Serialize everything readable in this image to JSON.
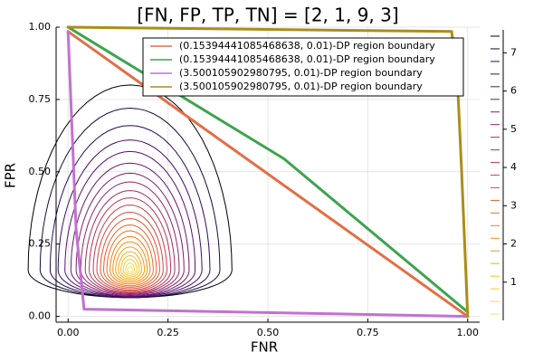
{
  "chart_data": {
    "type": "line",
    "title": "[FN, FP, TP, TN] = [2, 1, 9, 3]",
    "xlabel": "FNR",
    "ylabel": "FPR",
    "xlim": [
      -0.03,
      1.03
    ],
    "ylim": [
      -0.02,
      1.0
    ],
    "x_ticks": [
      0.0,
      0.25,
      0.5,
      0.75,
      1.0
    ],
    "x_tick_labels": [
      "0.00",
      "0.25",
      "0.50",
      "0.75",
      "1.00"
    ],
    "y_ticks": [
      0.0,
      0.25,
      0.5,
      0.75,
      1.0
    ],
    "y_tick_labels": [
      "0.00",
      "0.25",
      "0.50",
      "0.75",
      "1.00"
    ],
    "grid": true,
    "legend_position": "top-right",
    "series": [
      {
        "name": "(0.15394441085468638, 0.01)-DP region boundary",
        "color": "#e26f46",
        "x": [
          0.0,
          1.0
        ],
        "y": [
          0.985,
          0.0
        ]
      },
      {
        "name": "(0.15394441085468638, 0.01)-DP region boundary",
        "color": "#3da44d",
        "x": [
          0.0,
          0.54,
          1.0
        ],
        "y": [
          1.0,
          0.545,
          0.015
        ]
      },
      {
        "name": "(3.500105902980795, 0.01)-DP region boundary",
        "color": "#c271d2",
        "x": [
          0.0,
          0.02,
          0.04,
          1.0
        ],
        "y": [
          0.985,
          0.3,
          0.025,
          0.0
        ]
      },
      {
        "name": "(3.500105902980795, 0.01)-DP region boundary",
        "color": "#ac8d18",
        "x": [
          0.0,
          0.96,
          0.975,
          0.985,
          1.0
        ],
        "y": [
          1.0,
          0.985,
          0.8,
          0.5,
          0.0
        ]
      }
    ],
    "contours": {
      "center": [
        0.155,
        0.16
      ],
      "colorbar_ticks": [
        1,
        2,
        3,
        4,
        5,
        6,
        7
      ],
      "colorbar_range": [
        0,
        7.6
      ],
      "levels": [
        {
          "rx": 0.255,
          "ry_up": 0.64,
          "ry_down": 0.095,
          "color": "#000000"
        },
        {
          "rx": 0.225,
          "ry_up": 0.56,
          "ry_down": 0.095,
          "color": "#160b39"
        },
        {
          "rx": 0.2,
          "ry_up": 0.5,
          "ry_down": 0.095,
          "color": "#2b0b57"
        },
        {
          "rx": 0.18,
          "ry_up": 0.45,
          "ry_down": 0.093,
          "color": "#420a68"
        },
        {
          "rx": 0.163,
          "ry_up": 0.41,
          "ry_down": 0.091,
          "color": "#57106e"
        },
        {
          "rx": 0.148,
          "ry_up": 0.37,
          "ry_down": 0.089,
          "color": "#6a176e"
        },
        {
          "rx": 0.135,
          "ry_up": 0.335,
          "ry_down": 0.086,
          "color": "#7f1e6c"
        },
        {
          "rx": 0.123,
          "ry_up": 0.305,
          "ry_down": 0.083,
          "color": "#932667"
        },
        {
          "rx": 0.112,
          "ry_up": 0.275,
          "ry_down": 0.08,
          "color": "#a52c60"
        },
        {
          "rx": 0.102,
          "ry_up": 0.25,
          "ry_down": 0.077,
          "color": "#b73557"
        },
        {
          "rx": 0.092,
          "ry_up": 0.225,
          "ry_down": 0.073,
          "color": "#c73e4c"
        },
        {
          "rx": 0.083,
          "ry_up": 0.2,
          "ry_down": 0.069,
          "color": "#d44842"
        },
        {
          "rx": 0.074,
          "ry_up": 0.178,
          "ry_down": 0.064,
          "color": "#e05536"
        },
        {
          "rx": 0.066,
          "ry_up": 0.156,
          "ry_down": 0.059,
          "color": "#e8602d"
        },
        {
          "rx": 0.058,
          "ry_up": 0.136,
          "ry_down": 0.054,
          "color": "#f06f20"
        },
        {
          "rx": 0.05,
          "ry_up": 0.116,
          "ry_down": 0.048,
          "color": "#f57d15"
        },
        {
          "rx": 0.043,
          "ry_up": 0.098,
          "ry_down": 0.042,
          "color": "#f98e09"
        },
        {
          "rx": 0.036,
          "ry_up": 0.08,
          "ry_down": 0.036,
          "color": "#fb9b06"
        },
        {
          "rx": 0.029,
          "ry_up": 0.064,
          "ry_down": 0.03,
          "color": "#fcab10"
        },
        {
          "rx": 0.023,
          "ry_up": 0.05,
          "ry_down": 0.024,
          "color": "#fbba1f"
        },
        {
          "rx": 0.017,
          "ry_up": 0.037,
          "ry_down": 0.018,
          "color": "#f8c932"
        },
        {
          "rx": 0.011,
          "ry_up": 0.024,
          "ry_down": 0.012,
          "color": "#f3d84c"
        },
        {
          "rx": 0.006,
          "ry_up": 0.012,
          "ry_down": 0.006,
          "color": "#f2e661"
        }
      ]
    }
  }
}
